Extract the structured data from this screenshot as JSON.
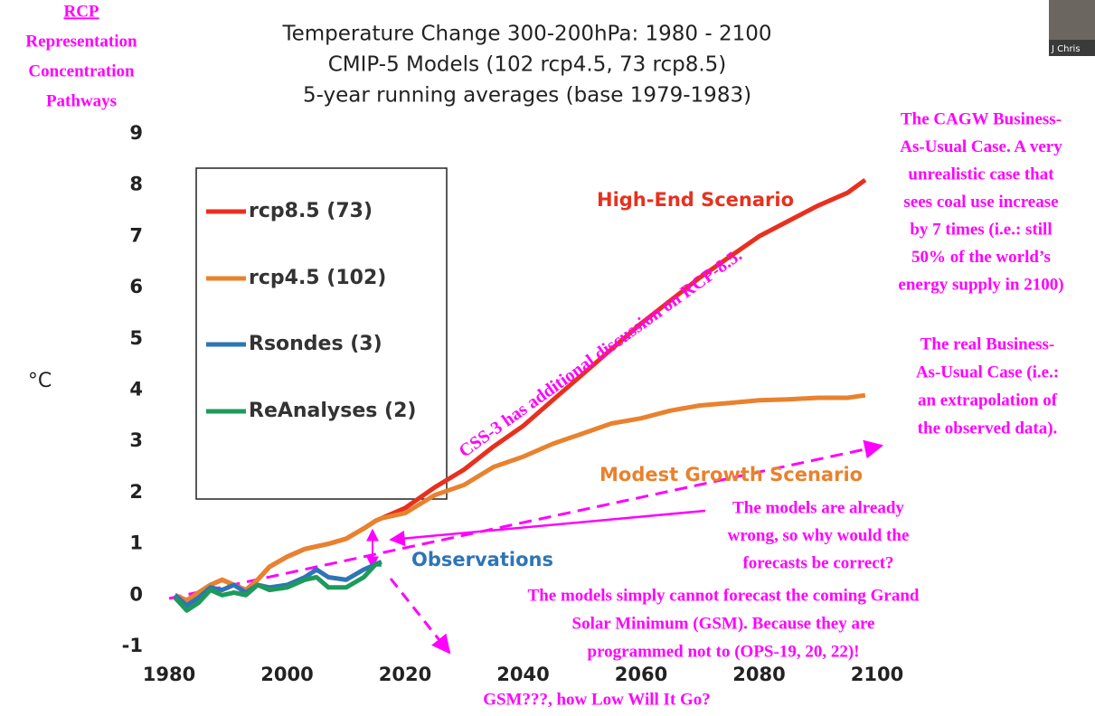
{
  "chart_data": {
    "type": "line",
    "title": "Temperature Change 300-200hPa: 1980 - 2100",
    "subtitle": [
      "CMIP-5 Models (102 rcp4.5, 73 rcp8.5)",
      "5-year running averages (base 1979-1983)"
    ],
    "y_label": "°C",
    "x": [
      1981,
      1983,
      1985,
      1987,
      1989,
      1991,
      1993,
      1995,
      1997,
      2000,
      2003,
      2005,
      2007,
      2010,
      2013,
      2015,
      2016,
      2020,
      2025,
      2030,
      2035,
      2040,
      2045,
      2050,
      2055,
      2060,
      2065,
      2070,
      2075,
      2080,
      2085,
      2090,
      2095,
      2098
    ],
    "series": [
      {
        "name": "rcp8.5 (73)",
        "color": "#e8301e",
        "values": [
          0.0,
          -0.1,
          0.05,
          0.2,
          0.3,
          0.2,
          0.1,
          0.3,
          0.55,
          0.75,
          0.9,
          0.95,
          1.0,
          1.1,
          1.3,
          1.45,
          1.5,
          1.7,
          2.1,
          2.45,
          2.9,
          3.3,
          3.8,
          4.3,
          4.8,
          5.3,
          5.75,
          6.2,
          6.6,
          7.0,
          7.3,
          7.6,
          7.85,
          8.1
        ]
      },
      {
        "name": "rcp4.5 (102)",
        "color": "#e8822e",
        "values": [
          0.0,
          -0.1,
          0.05,
          0.2,
          0.3,
          0.2,
          0.1,
          0.3,
          0.55,
          0.75,
          0.9,
          0.95,
          1.0,
          1.1,
          1.3,
          1.45,
          1.5,
          1.6,
          1.95,
          2.15,
          2.5,
          2.7,
          2.95,
          3.15,
          3.35,
          3.45,
          3.6,
          3.7,
          3.75,
          3.8,
          3.82,
          3.85,
          3.85,
          3.9
        ]
      },
      {
        "name": "Rsondes (3)",
        "color": "#2e75b6",
        "values": [
          0.0,
          -0.2,
          -0.05,
          0.15,
          0.1,
          0.2,
          0.05,
          0.2,
          0.15,
          0.2,
          0.35,
          0.5,
          0.35,
          0.3,
          0.5,
          0.6,
          0.65,
          null,
          null,
          null,
          null,
          null,
          null,
          null,
          null,
          null,
          null,
          null,
          null,
          null,
          null,
          null,
          null,
          null
        ]
      },
      {
        "name": "ReAnalyses (2)",
        "color": "#1e9a5a",
        "values": [
          -0.05,
          -0.3,
          -0.15,
          0.1,
          0.0,
          0.05,
          0.0,
          0.2,
          0.1,
          0.15,
          0.3,
          0.35,
          0.15,
          0.15,
          0.35,
          0.6,
          0.6,
          null,
          null,
          null,
          null,
          null,
          null,
          null,
          null,
          null,
          null,
          null,
          null,
          null,
          null,
          null,
          null,
          null
        ]
      }
    ],
    "xlim": [
      1980,
      2100
    ],
    "xticks": [
      1980,
      2000,
      2020,
      2040,
      2060,
      2080,
      2100
    ],
    "ylim": [
      -1,
      9
    ],
    "yticks": [
      -1,
      0,
      1,
      2,
      3,
      4,
      5,
      6,
      7,
      8,
      9
    ],
    "grid": false,
    "legend": "upper left",
    "labels": [
      {
        "text": "High-End Scenario",
        "color": "#e8301e"
      },
      {
        "text": "Modest Growth Scenario",
        "color": "#e8822e"
      },
      {
        "text": "Observations",
        "color": "#2e75b6"
      }
    ],
    "note_color": "#ff00ff",
    "notes": [
      {
        "lines": [
          "RCP",
          "Representation",
          "Concentration",
          "Pathways"
        ]
      },
      {
        "lines": [
          "The CAGW Business-",
          "As-Usual Case. A very",
          "unrealistic case that",
          "sees coal use increase",
          "by 7 times (i.e.: still",
          "50% of the world’s",
          "energy supply in 2100)"
        ]
      },
      {
        "lines": [
          "The real Business-",
          "As-Usual Case (i.e.:",
          "an extrapolation of",
          "the observed data)."
        ]
      },
      {
        "lines": [
          "The models are already",
          "wrong, so why would the",
          "forecasts be correct?"
        ]
      },
      {
        "lines": [
          "The models simply cannot forecast the coming Grand",
          "Solar Minimum (GSM). Because they are",
          "programmed not to (OPS-19, 20, 22)!"
        ]
      },
      {
        "lines": [
          "GSM???, how Low Will It Go?"
        ]
      },
      {
        "lines": [
          "CSS-3 has additional discussion on RCP-8.5."
        ]
      }
    ],
    "webcam_label": "J Chris"
  }
}
